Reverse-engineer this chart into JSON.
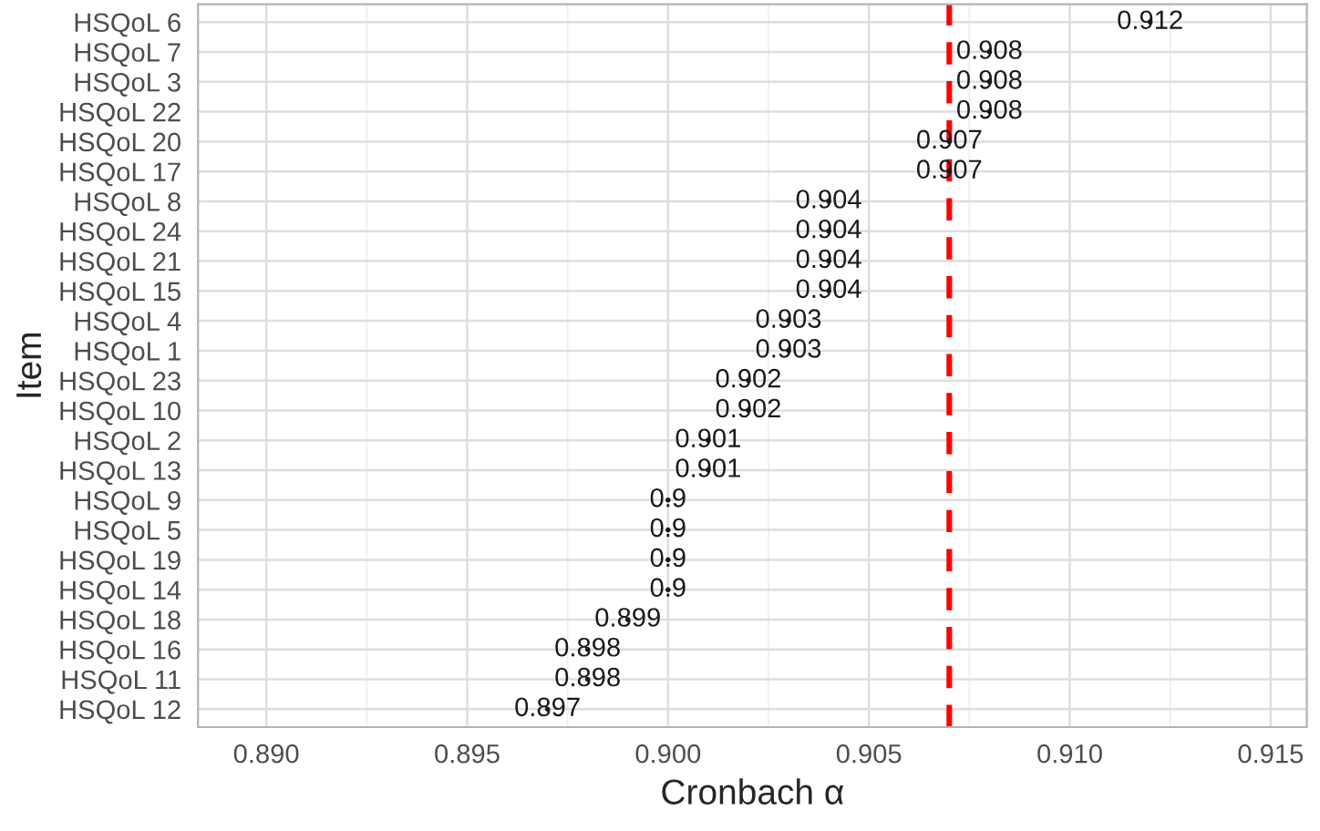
{
  "chart_data": {
    "type": "scatter",
    "xlabel": "Cronbach α",
    "ylabel": "Item",
    "categories": [
      "HSQoL 6",
      "HSQoL 7",
      "HSQoL 3",
      "HSQoL 22",
      "HSQoL 20",
      "HSQoL 17",
      "HSQoL 8",
      "HSQoL 24",
      "HSQoL 21",
      "HSQoL 15",
      "HSQoL 4",
      "HSQoL 1",
      "HSQoL 23",
      "HSQoL 10",
      "HSQoL 2",
      "HSQoL 13",
      "HSQoL 9",
      "HSQoL 5",
      "HSQoL 19",
      "HSQoL 14",
      "HSQoL 18",
      "HSQoL 16",
      "HSQoL 11",
      "HSQoL 12"
    ],
    "values": [
      0.912,
      0.908,
      0.908,
      0.908,
      0.907,
      0.907,
      0.904,
      0.904,
      0.904,
      0.904,
      0.903,
      0.903,
      0.902,
      0.902,
      0.901,
      0.901,
      0.9,
      0.9,
      0.9,
      0.9,
      0.899,
      0.898,
      0.898,
      0.897
    ],
    "orientation": "horizontal",
    "marker": "none",
    "data_labels": true,
    "xlim": [
      0.8883,
      0.9159
    ],
    "xticks": [
      {
        "value": 0.89,
        "label": "0.890"
      },
      {
        "value": 0.895,
        "label": "0.895"
      },
      {
        "value": 0.9,
        "label": "0.900"
      },
      {
        "value": 0.905,
        "label": "0.905"
      },
      {
        "value": 0.91,
        "label": "0.910"
      },
      {
        "value": 0.915,
        "label": "0.915"
      }
    ],
    "ref_lines": [
      {
        "axis": "x",
        "value": 0.907,
        "color": "#ff0000",
        "line_style": "dashed"
      }
    ],
    "grid": true
  }
}
